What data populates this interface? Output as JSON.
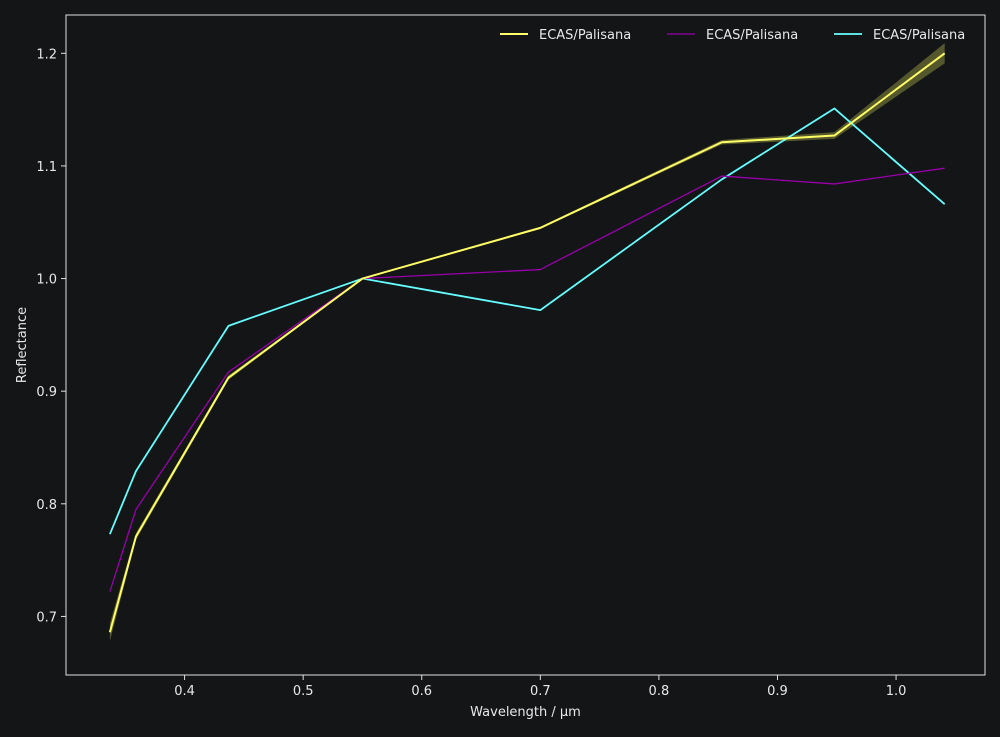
{
  "chart_data": {
    "type": "line",
    "title": "",
    "xlabel": "Wavelength / µm",
    "ylabel": "Reflectance",
    "xlim": [
      0.3,
      1.075
    ],
    "ylim": [
      0.648,
      1.234
    ],
    "xticks": [
      0.4,
      0.5,
      0.6,
      0.7,
      0.8,
      0.9,
      1.0
    ],
    "xtick_labels": [
      "0.4",
      "0.5",
      "0.6",
      "0.7",
      "0.8",
      "0.9",
      "1.0"
    ],
    "yticks": [
      0.7,
      0.8,
      0.9,
      1.0,
      1.1,
      1.2
    ],
    "ytick_labels": [
      "0.7",
      "0.8",
      "0.9",
      "1.0",
      "1.1",
      "1.2"
    ],
    "grid": false,
    "legend": {
      "placement": "top-right",
      "columns": 3
    },
    "background": "#131517",
    "axes_color": "#e0e0e0",
    "series": [
      {
        "name": "ECAS/Palisana",
        "color": "#ffff66",
        "x": [
          0.337,
          0.359,
          0.437,
          0.55,
          0.7,
          0.853,
          0.948,
          1.041
        ],
        "values": [
          0.686,
          0.771,
          0.912,
          1.0,
          1.045,
          1.121,
          1.127,
          1.2
        ],
        "band": [
          0.008,
          0.003,
          0.002,
          0.0,
          0.001,
          0.002,
          0.003,
          0.009
        ]
      },
      {
        "name": "ECAS/Palisana",
        "color": "#9900aa",
        "x": [
          0.337,
          0.359,
          0.437,
          0.55,
          0.7,
          0.853,
          0.948,
          1.041
        ],
        "values": [
          0.722,
          0.795,
          0.917,
          1.0,
          1.008,
          1.091,
          1.084,
          1.098
        ]
      },
      {
        "name": "ECAS/Palisana",
        "color": "#66ffff",
        "x": [
          0.337,
          0.359,
          0.437,
          0.55,
          0.7,
          0.853,
          0.948,
          1.041
        ],
        "values": [
          0.773,
          0.829,
          0.958,
          1.0,
          0.972,
          1.088,
          1.151,
          1.066
        ]
      }
    ]
  }
}
